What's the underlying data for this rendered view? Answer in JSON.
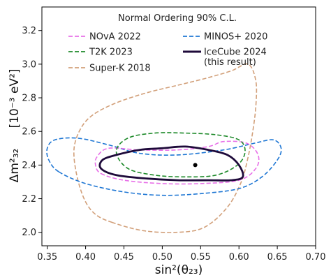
{
  "chart_data": {
    "type": "line",
    "title": "",
    "xlabel": "sin²(θ₂₃)",
    "ylabel_main": "Δm²₃₂",
    "ylabel_unit": "[10⁻³ eV²]",
    "xlim": [
      0.343,
      0.7
    ],
    "ylim": [
      1.92,
      3.34
    ],
    "xticks": [
      0.35,
      0.4,
      0.45,
      0.5,
      0.55,
      0.6,
      0.65,
      0.7
    ],
    "xtick_labels": [
      "0.35",
      "0.40",
      "0.45",
      "0.50",
      "0.55",
      "0.60",
      "0.65",
      "0.70"
    ],
    "yticks": [
      2.0,
      2.2,
      2.4,
      2.6,
      2.8,
      3.0,
      3.2
    ],
    "ytick_labels": [
      "2.0",
      "2.2",
      "2.4",
      "2.6",
      "2.8",
      "3.0",
      "3.2"
    ],
    "grid": false,
    "legend": {
      "title": "Normal Ordering 90% C.L.",
      "placement": "top",
      "entries": [
        "NOvA 2022",
        "MINOS+ 2020",
        "T2K 2023",
        "IceCube 2024",
        "(this result)",
        "Super-K 2018"
      ]
    },
    "best_fit": {
      "x": 0.543,
      "y": 2.4
    },
    "series": [
      {
        "name": "Super-K 2018",
        "color": "#d2a07a",
        "style": "dashed",
        "points": [
          [
            0.434,
            2.06
          ],
          [
            0.475,
            2.01
          ],
          [
            0.52,
            2.0
          ],
          [
            0.555,
            2.03
          ],
          [
            0.585,
            2.15
          ],
          [
            0.603,
            2.3
          ],
          [
            0.612,
            2.45
          ],
          [
            0.618,
            2.6
          ],
          [
            0.622,
            2.75
          ],
          [
            0.622,
            2.9
          ],
          [
            0.612,
            3.0
          ],
          [
            0.59,
            2.96
          ],
          [
            0.56,
            2.92
          ],
          [
            0.525,
            2.88
          ],
          [
            0.48,
            2.83
          ],
          [
            0.44,
            2.77
          ],
          [
            0.41,
            2.7
          ],
          [
            0.394,
            2.62
          ],
          [
            0.385,
            2.5
          ],
          [
            0.388,
            2.35
          ],
          [
            0.398,
            2.2
          ],
          [
            0.412,
            2.11
          ],
          [
            0.434,
            2.06
          ]
        ]
      },
      {
        "name": "MINOS+ 2020",
        "color": "#1f77d4",
        "style": "dashed",
        "points": [
          [
            0.365,
            2.36
          ],
          [
            0.4,
            2.29
          ],
          [
            0.45,
            2.24
          ],
          [
            0.5,
            2.22
          ],
          [
            0.55,
            2.23
          ],
          [
            0.6,
            2.26
          ],
          [
            0.63,
            2.33
          ],
          [
            0.65,
            2.43
          ],
          [
            0.655,
            2.5
          ],
          [
            0.645,
            2.55
          ],
          [
            0.62,
            2.53
          ],
          [
            0.58,
            2.49
          ],
          [
            0.52,
            2.46
          ],
          [
            0.47,
            2.47
          ],
          [
            0.43,
            2.52
          ],
          [
            0.39,
            2.56
          ],
          [
            0.36,
            2.55
          ],
          [
            0.35,
            2.5
          ],
          [
            0.352,
            2.43
          ],
          [
            0.365,
            2.36
          ]
        ]
      },
      {
        "name": "NOvA 2022",
        "color": "#e870e8",
        "style": "dashed",
        "points": [
          [
            0.42,
            2.35
          ],
          [
            0.45,
            2.31
          ],
          [
            0.5,
            2.29
          ],
          [
            0.55,
            2.29
          ],
          [
            0.6,
            2.31
          ],
          [
            0.622,
            2.38
          ],
          [
            0.625,
            2.46
          ],
          [
            0.61,
            2.53
          ],
          [
            0.58,
            2.54
          ],
          [
            0.56,
            2.51
          ],
          [
            0.52,
            2.49
          ],
          [
            0.47,
            2.49
          ],
          [
            0.43,
            2.5
          ],
          [
            0.415,
            2.45
          ],
          [
            0.413,
            2.4
          ],
          [
            0.42,
            2.35
          ]
        ]
      },
      {
        "name": "T2K 2023",
        "color": "#1e8a2a",
        "style": "dashed",
        "points": [
          [
            0.44,
            2.48
          ],
          [
            0.455,
            2.38
          ],
          [
            0.49,
            2.34
          ],
          [
            0.53,
            2.33
          ],
          [
            0.57,
            2.34
          ],
          [
            0.598,
            2.4
          ],
          [
            0.608,
            2.48
          ],
          [
            0.6,
            2.55
          ],
          [
            0.57,
            2.58
          ],
          [
            0.53,
            2.59
          ],
          [
            0.49,
            2.59
          ],
          [
            0.455,
            2.56
          ],
          [
            0.44,
            2.48
          ]
        ]
      },
      {
        "name": "IceCube 2024",
        "color": "#1e0a3a",
        "style": "solid",
        "points": [
          [
            0.42,
            2.38
          ],
          [
            0.44,
            2.34
          ],
          [
            0.48,
            2.32
          ],
          [
            0.52,
            2.31
          ],
          [
            0.56,
            2.31
          ],
          [
            0.59,
            2.31
          ],
          [
            0.605,
            2.33
          ],
          [
            0.6,
            2.4
          ],
          [
            0.585,
            2.46
          ],
          [
            0.56,
            2.49
          ],
          [
            0.53,
            2.51
          ],
          [
            0.5,
            2.5
          ],
          [
            0.47,
            2.49
          ],
          [
            0.44,
            2.46
          ],
          [
            0.422,
            2.43
          ],
          [
            0.42,
            2.38
          ]
        ]
      }
    ]
  }
}
